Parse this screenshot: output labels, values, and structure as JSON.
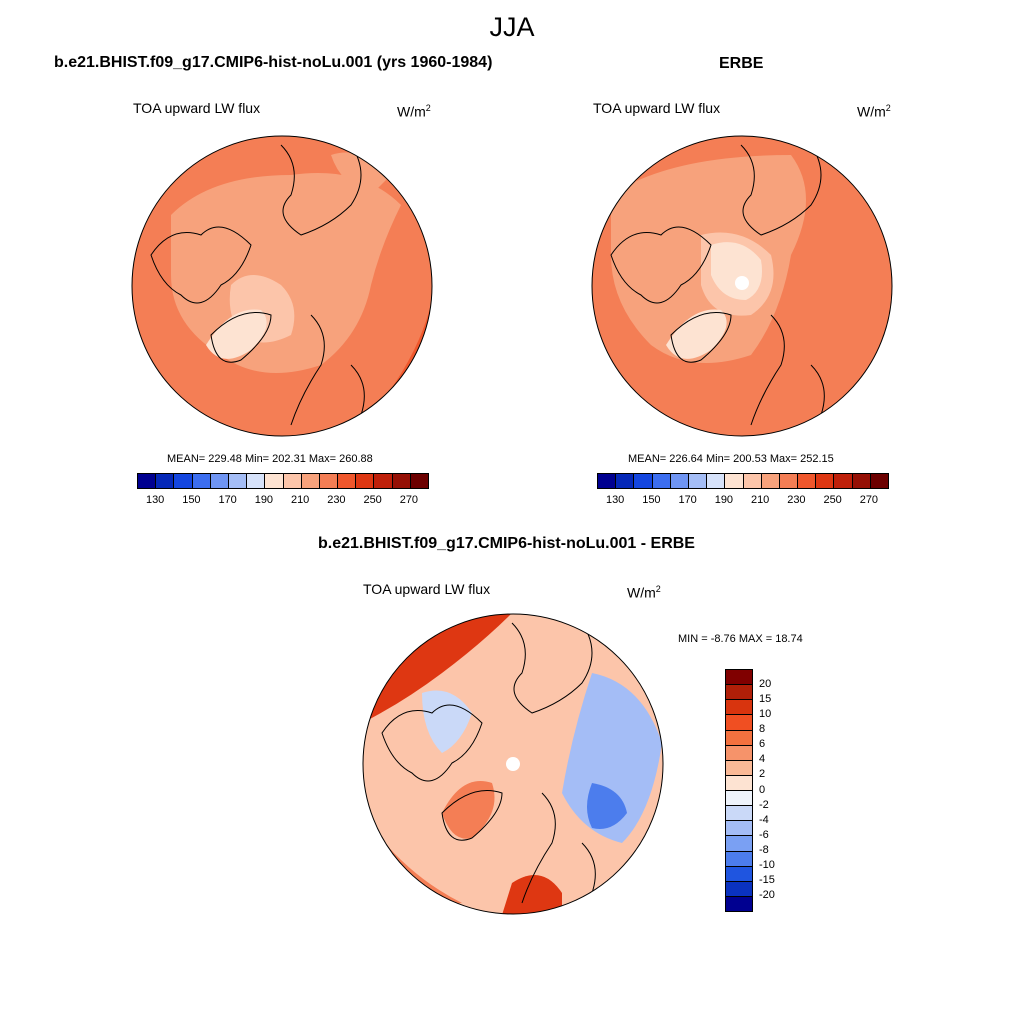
{
  "figure": {
    "title": "JJA"
  },
  "panels": {
    "model": {
      "title": "b.e21.BHIST.f09_g17.CMIP6-hist-noLu.001 (yrs 1960-1984)",
      "variable": "TOA upward LW flux",
      "units_base": "W/m",
      "units_exp": "2",
      "stats": "MEAN= 229.48  Min= 202.31  Max= 260.88"
    },
    "obs": {
      "title": "ERBE",
      "variable": "TOA upward LW flux",
      "units_base": "W/m",
      "units_exp": "2",
      "stats": "MEAN= 226.64  Min= 200.53  Max= 252.15"
    },
    "diff": {
      "title": "b.e21.BHIST.f09_g17.CMIP6-hist-noLu.001 - ERBE",
      "variable": "TOA upward LW flux",
      "units_base": "W/m",
      "units_exp": "2",
      "stats": "MIN =  -8.76 MAX =  18.74"
    }
  },
  "colorbar_abs": {
    "labels": [
      "130",
      "150",
      "170",
      "190",
      "210",
      "230",
      "250",
      "270"
    ],
    "colors": [
      "#000090",
      "#0528b8",
      "#1446e0",
      "#3c6ef0",
      "#6f95f3",
      "#a4bdf6",
      "#d6e2fa",
      "#fde3d2",
      "#fcc5aa",
      "#f7a27c",
      "#f47e55",
      "#f0572c",
      "#de3712",
      "#bf200a",
      "#951005",
      "#6c0000"
    ]
  },
  "colorbar_diff": {
    "labels": [
      "20",
      "15",
      "10",
      "8",
      "6",
      "4",
      "2",
      "0",
      "-2",
      "-4",
      "-6",
      "-8",
      "-10",
      "-15",
      "-20"
    ],
    "colors": [
      "#800000",
      "#b01f08",
      "#d8340e",
      "#f04f22",
      "#f3713f",
      "#f6936a",
      "#fab996",
      "#fde3d2",
      "#eef3fb",
      "#cad9f8",
      "#a4bdf6",
      "#7aa0f3",
      "#4c7ded",
      "#1f55e0",
      "#0a32c0",
      "#000090"
    ]
  }
}
